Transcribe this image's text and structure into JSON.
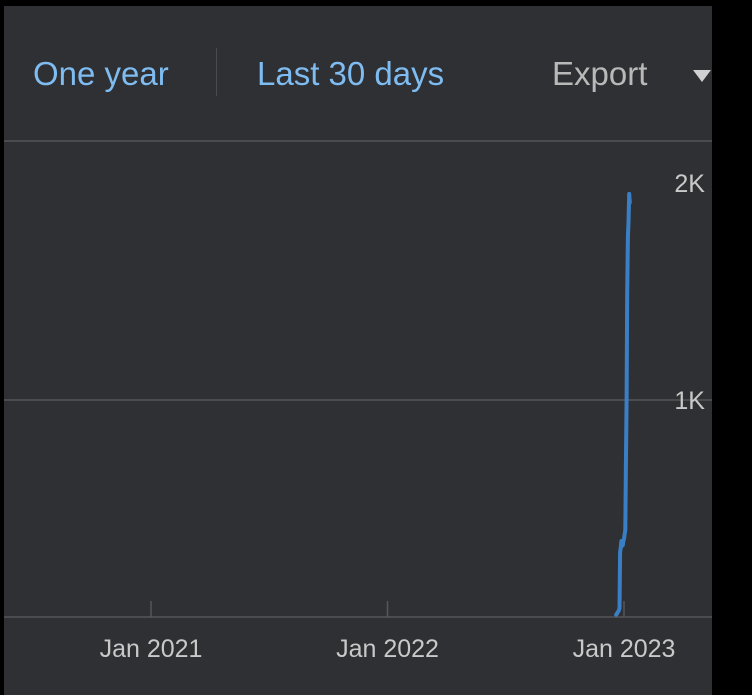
{
  "toolbar": {
    "range_one_year": "One year",
    "range_last_30_days": "Last 30 days",
    "export_label": "Export"
  },
  "colors": {
    "background": "#2f3033",
    "link": "#7fbcf1",
    "line": "#3a7fc6",
    "grid": "#55565a"
  },
  "chart_data": {
    "type": "line",
    "title": "",
    "xlabel": "",
    "ylabel": "",
    "x_ticks": [
      "Jan 2021",
      "Jan 2022",
      "Jan 2023"
    ],
    "y_ticks": [
      "1K",
      "2K"
    ],
    "ylim": [
      0,
      2000
    ],
    "xlim": [
      "2020-06-28",
      "2023-04-30"
    ],
    "grid": true,
    "legend": "none",
    "series": [
      {
        "x": [
          "2022-12-20",
          "2022-12-22",
          "2022-12-24",
          "2022-12-25",
          "2022-12-26",
          "2022-12-27",
          "2022-12-28",
          "2022-12-29",
          "2022-12-30",
          "2022-12-31",
          "2023-01-01",
          "2023-01-02",
          "2023-01-03",
          "2023-01-04",
          "2023-01-05",
          "2023-01-06",
          "2023-01-07",
          "2023-01-08",
          "2023-01-09",
          "2023-01-10"
        ],
        "y": [
          10,
          20,
          30,
          40,
          300,
          320,
          350,
          340,
          330,
          350,
          360,
          380,
          400,
          700,
          1000,
          1500,
          1750,
          1820,
          1950,
          1910
        ]
      }
    ]
  }
}
